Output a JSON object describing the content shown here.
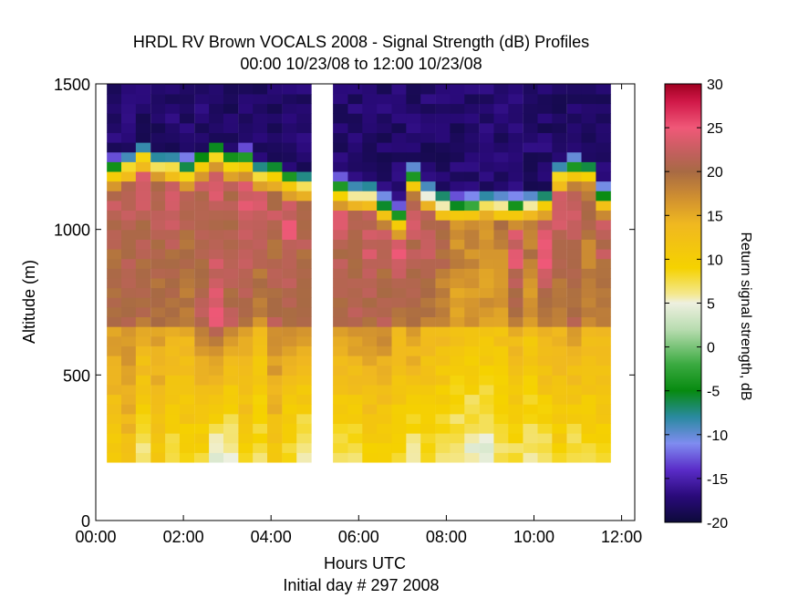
{
  "chart_data": {
    "type": "heatmap",
    "title": "HRDL RV Brown VOCALS 2008 - Signal Strength (dB) Profiles",
    "subtitle": "00:00 10/23/08 to 12:00 10/23/08",
    "xlabel": "Hours UTC",
    "xlabel2": "Initial day # 297  2008",
    "ylabel": "Altitude (m)",
    "colorbar_label": "Return signal strength, dB",
    "xlim": [
      0,
      12.3
    ],
    "ylim": [
      0,
      1500
    ],
    "x_ticks": [
      0,
      2,
      4,
      6,
      8,
      10,
      12
    ],
    "x_tick_labels": [
      "00:00",
      "02:00",
      "04:00",
      "06:00",
      "08:00",
      "10:00",
      "12:00"
    ],
    "y_ticks": [
      0,
      500,
      1000,
      1500
    ],
    "y_tick_labels": [
      "0",
      "500",
      "1000",
      "1500"
    ],
    "colorbar_range": [
      -20,
      30
    ],
    "colorbar_ticks": [
      -20,
      -15,
      -10,
      -5,
      0,
      5,
      10,
      15,
      20,
      25,
      30
    ],
    "colorbar_tick_labels": [
      "-20",
      "-15",
      "-10",
      "-5",
      "0",
      "5",
      "10",
      "15",
      "20",
      "25",
      "30"
    ],
    "altitude_start_m": 200,
    "altitude_step_m": 33.3,
    "profiles": [
      {
        "t": 0.42,
        "top": 1205,
        "bot": 9,
        "b": 19,
        "mid": 21
      },
      {
        "t": 0.75,
        "top": 1225,
        "bot": 11,
        "b": 20,
        "mid": 21
      },
      {
        "t": 1.08,
        "top": 1260,
        "bot": 5,
        "b": 18,
        "mid": 22
      },
      {
        "t": 1.42,
        "top": 1230,
        "bot": 10,
        "b": 19,
        "mid": 21
      },
      {
        "t": 1.75,
        "top": 1220,
        "bot": 6,
        "b": 17,
        "mid": 22
      },
      {
        "t": 2.08,
        "top": 1205,
        "bot": 8,
        "b": 17,
        "mid": 21
      },
      {
        "t": 2.42,
        "top": 1235,
        "bot": 7,
        "b": 20,
        "mid": 21
      },
      {
        "t": 2.75,
        "top": 1270,
        "bot": 2,
        "b": 23,
        "mid": 22
      },
      {
        "t": 3.08,
        "top": 1235,
        "bot": 3,
        "b": 20,
        "mid": 21
      },
      {
        "t": 3.42,
        "top": 1240,
        "bot": 8,
        "b": 19,
        "mid": 23
      },
      {
        "t": 3.75,
        "top": 1195,
        "bot": 6,
        "b": 16,
        "mid": 22
      },
      {
        "t": 4.08,
        "top": 1200,
        "bot": 10,
        "b": 20,
        "mid": 21
      },
      {
        "t": 4.42,
        "top": 1170,
        "bot": 6,
        "b": 19,
        "mid": 23
      },
      {
        "t": 4.75,
        "top": 1160,
        "bot": 3,
        "b": 20,
        "mid": 21
      },
      {
        "t": 5.58,
        "top": 1140,
        "bot": 6,
        "b": 18,
        "mid": 22
      },
      {
        "t": 5.92,
        "top": 1125,
        "bot": 5,
        "b": 20,
        "mid": 21
      },
      {
        "t": 6.25,
        "top": 1120,
        "bot": 8,
        "b": 19,
        "mid": 22
      },
      {
        "t": 6.58,
        "top": 1075,
        "bot": 7,
        "b": 20,
        "mid": 21
      },
      {
        "t": 6.92,
        "top": 1040,
        "bot": 7,
        "b": 17,
        "mid": 23
      },
      {
        "t": 7.25,
        "top": 1180,
        "bot": 4,
        "b": 19,
        "mid": 22
      },
      {
        "t": 7.58,
        "top": 1120,
        "bot": 6,
        "b": 17,
        "mid": 21
      },
      {
        "t": 7.92,
        "top": 1090,
        "bot": 6,
        "b": 16,
        "mid": 19
      },
      {
        "t": 8.25,
        "top": 1075,
        "bot": 4,
        "b": 15,
        "mid": 17
      },
      {
        "t": 8.58,
        "top": 1080,
        "bot": 3,
        "b": 15,
        "mid": 17
      },
      {
        "t": 8.92,
        "top": 1090,
        "bot": 3,
        "b": 15,
        "mid": 17
      },
      {
        "t": 9.25,
        "top": 1085,
        "bot": 5,
        "b": 15,
        "mid": 17
      },
      {
        "t": 9.58,
        "top": 1080,
        "bot": 6,
        "b": 17,
        "mid": 23
      },
      {
        "t": 9.92,
        "top": 1085,
        "bot": 5,
        "b": 15,
        "mid": 18
      },
      {
        "t": 10.25,
        "top": 1100,
        "bot": 5,
        "b": 18,
        "mid": 23
      },
      {
        "t": 10.58,
        "top": 1190,
        "bot": 8,
        "b": 17,
        "mid": 22
      },
      {
        "t": 10.92,
        "top": 1215,
        "bot": 5,
        "b": 19,
        "mid": 22
      },
      {
        "t": 11.25,
        "top": 1200,
        "bot": 6,
        "b": 17,
        "mid": 19
      },
      {
        "t": 11.58,
        "top": 1110,
        "bot": 7,
        "b": 17,
        "mid": 21
      }
    ]
  }
}
